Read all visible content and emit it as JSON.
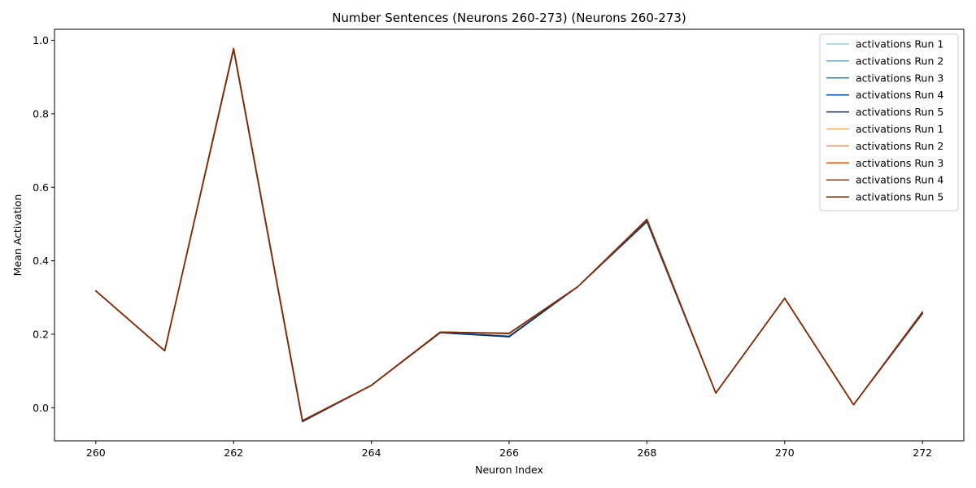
{
  "chart_data": {
    "type": "line",
    "title": "Number Sentences (Neurons 260-273) (Neurons 260-273)",
    "xlabel": "Neuron Index",
    "ylabel": "Mean Activation",
    "xlim": [
      259.4,
      272.6
    ],
    "ylim": [
      -0.09,
      1.03
    ],
    "xticks": [
      260,
      262,
      264,
      266,
      268,
      270,
      272
    ],
    "yticks": [
      0.0,
      0.2,
      0.4,
      0.6,
      0.8,
      1.0
    ],
    "xtick_labels": [
      "260",
      "262",
      "264",
      "266",
      "268",
      "270",
      "272"
    ],
    "ytick_labels": [
      "0.0",
      "0.2",
      "0.4",
      "0.6",
      "0.8",
      "1.0"
    ],
    "grid": false,
    "legend_position": "top-right",
    "x": [
      260,
      261,
      262,
      263,
      264,
      265,
      266,
      267,
      268,
      269,
      270,
      271,
      272
    ],
    "series": [
      {
        "name": "activations Run 1",
        "color": "#9ecae1",
        "values": [
          0.318,
          0.155,
          0.975,
          -0.037,
          0.061,
          0.205,
          0.195,
          0.33,
          0.508,
          0.04,
          0.298,
          0.008,
          0.258
        ]
      },
      {
        "name": "activations Run 2",
        "color": "#6baed6",
        "values": [
          0.318,
          0.155,
          0.975,
          -0.037,
          0.061,
          0.205,
          0.195,
          0.33,
          0.508,
          0.04,
          0.298,
          0.008,
          0.258
        ]
      },
      {
        "name": "activations Run 3",
        "color": "#3182bd",
        "values": [
          0.318,
          0.155,
          0.975,
          -0.037,
          0.061,
          0.205,
          0.195,
          0.33,
          0.508,
          0.04,
          0.298,
          0.008,
          0.258
        ]
      },
      {
        "name": "activations Run 4",
        "color": "#08519c",
        "values": [
          0.318,
          0.155,
          0.975,
          -0.037,
          0.061,
          0.205,
          0.194,
          0.33,
          0.507,
          0.04,
          0.298,
          0.008,
          0.257
        ]
      },
      {
        "name": "activations Run 5",
        "color": "#08306b",
        "values": [
          0.318,
          0.155,
          0.975,
          -0.038,
          0.061,
          0.204,
          0.193,
          0.33,
          0.506,
          0.04,
          0.298,
          0.008,
          0.256
        ]
      },
      {
        "name": "activations Run 1",
        "color": "#fdae6b",
        "values": [
          0.318,
          0.155,
          0.978,
          -0.035,
          0.061,
          0.206,
          0.202,
          0.33,
          0.512,
          0.04,
          0.298,
          0.008,
          0.26
        ]
      },
      {
        "name": "activations Run 2",
        "color": "#fd8d3c",
        "values": [
          0.318,
          0.155,
          0.978,
          -0.035,
          0.061,
          0.206,
          0.202,
          0.33,
          0.512,
          0.04,
          0.298,
          0.008,
          0.26
        ]
      },
      {
        "name": "activations Run 3",
        "color": "#e6550d",
        "values": [
          0.318,
          0.155,
          0.978,
          -0.035,
          0.061,
          0.206,
          0.202,
          0.33,
          0.512,
          0.04,
          0.298,
          0.008,
          0.26
        ]
      },
      {
        "name": "activations Run 4",
        "color": "#a63603",
        "values": [
          0.318,
          0.155,
          0.978,
          -0.035,
          0.061,
          0.206,
          0.202,
          0.33,
          0.512,
          0.04,
          0.298,
          0.008,
          0.26
        ]
      },
      {
        "name": "activations Run 5",
        "color": "#7f2704",
        "values": [
          0.318,
          0.155,
          0.978,
          -0.035,
          0.061,
          0.206,
          0.203,
          0.33,
          0.513,
          0.04,
          0.298,
          0.008,
          0.261
        ]
      }
    ]
  }
}
